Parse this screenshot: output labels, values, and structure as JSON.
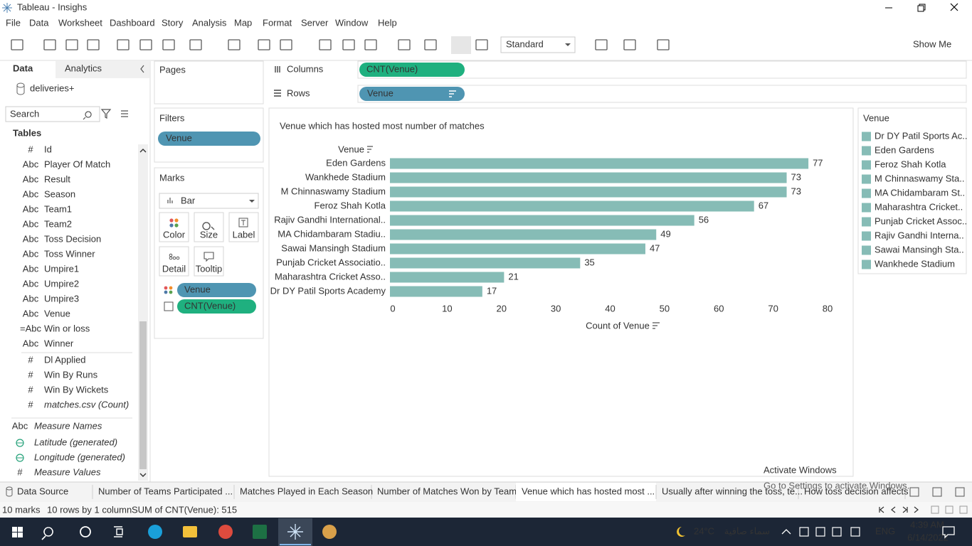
{
  "window": {
    "title": "Tableau - Insighs"
  },
  "menu": [
    "File",
    "Data",
    "Worksheet",
    "Dashboard",
    "Story",
    "Analysis",
    "Map",
    "Format",
    "Server",
    "Window",
    "Help"
  ],
  "toolbar": {
    "fit": "Standard",
    "show_me": "Show Me"
  },
  "data_pane": {
    "tabs": [
      "Data",
      "Analytics"
    ],
    "source": "deliveries+",
    "search": "Search",
    "tables_heading": "Tables",
    "dimensions": [
      {
        "icon": "#",
        "name": "Id"
      },
      {
        "icon": "Abc",
        "name": "Player Of Match"
      },
      {
        "icon": "Abc",
        "name": "Result"
      },
      {
        "icon": "Abc",
        "name": "Season"
      },
      {
        "icon": "Abc",
        "name": "Team1"
      },
      {
        "icon": "Abc",
        "name": "Team2"
      },
      {
        "icon": "Abc",
        "name": "Toss Decision"
      },
      {
        "icon": "Abc",
        "name": "Toss Winner"
      },
      {
        "icon": "Abc",
        "name": "Umpire1"
      },
      {
        "icon": "Abc",
        "name": "Umpire2"
      },
      {
        "icon": "Abc",
        "name": "Umpire3"
      },
      {
        "icon": "Abc",
        "name": "Venue"
      },
      {
        "icon": "=Abc",
        "name": "Win or loss"
      },
      {
        "icon": "Abc",
        "name": "Winner"
      }
    ],
    "measures": [
      {
        "icon": "#",
        "name": "Dl Applied"
      },
      {
        "icon": "#",
        "name": "Win By Runs"
      },
      {
        "icon": "#",
        "name": "Win By Wickets"
      },
      {
        "icon": "#",
        "name": "matches.csv (Count)"
      }
    ],
    "extras": [
      {
        "icon": "Abc",
        "name": "Measure Names"
      },
      {
        "name": "Latitude (generated)"
      },
      {
        "name": "Longitude (generated)"
      },
      {
        "icon": "#",
        "name": "Measure Values"
      }
    ]
  },
  "cards": {
    "pages": "Pages",
    "filters": "Filters",
    "filter_pills": [
      "Venue"
    ],
    "marks": "Marks",
    "mark_type": "Bar",
    "mark_buttons": [
      "Color",
      "Size",
      "Label",
      "Detail",
      "Tooltip"
    ],
    "mark_pills": [
      "Venue",
      "CNT(Venue)"
    ]
  },
  "shelves": {
    "columns": {
      "label": "Columns",
      "pill": "CNT(Venue)"
    },
    "rows": {
      "label": "Rows",
      "pill": "Venue"
    }
  },
  "chart_data": {
    "type": "bar",
    "title": "Venue which has hosted most number of matches",
    "y_header": "Venue",
    "xlabel": "Count of Venue",
    "categories": [
      "Eden Gardens",
      "Wankhede Stadium",
      "M Chinnaswamy Stadium",
      "Feroz Shah Kotla",
      "Rajiv Gandhi International..",
      "MA Chidambaram Stadiu..",
      "Sawai Mansingh Stadium",
      "Punjab Cricket Associatio..",
      "Maharashtra Cricket Asso..",
      "Dr DY Patil Sports Academy"
    ],
    "values": [
      77,
      73,
      73,
      67,
      56,
      49,
      47,
      35,
      21,
      17
    ],
    "color": "#86bcb6",
    "xlim": [
      0,
      80
    ],
    "xticks": [
      0,
      10,
      20,
      30,
      40,
      50,
      60,
      70,
      80
    ]
  },
  "legend": {
    "title": "Venue",
    "color": "#86bcb6",
    "items": [
      "Dr DY Patil Sports Ac..",
      "Eden Gardens",
      "Feroz Shah Kotla",
      "M Chinnaswamy Sta..",
      "MA Chidambaram St..",
      "Maharashtra Cricket..",
      "Punjab Cricket Assoc..",
      "Rajiv Gandhi Interna..",
      "Sawai Mansingh Sta..",
      "Wankhede Stadium"
    ]
  },
  "sheet_tabs": [
    "Data Source",
    "Number of Teams Participated ...",
    "Matches Played in Each Season",
    "Number of Matches Won by Team",
    "Venue which has hosted most ...",
    "Usually after winning the toss, te...",
    "How toss decision affects"
  ],
  "active_tab": 4,
  "status": [
    "10 marks",
    "10 rows by 1 column",
    "SUM of CNT(Venue): 515"
  ],
  "watermark": [
    "Activate Windows",
    "Go to Settings to activate Windows."
  ],
  "taskbar": {
    "temperature": "24°C",
    "weather": "سماء صافية",
    "language": "ENG",
    "time": "4:39 AM",
    "date": "6/14/2022"
  }
}
